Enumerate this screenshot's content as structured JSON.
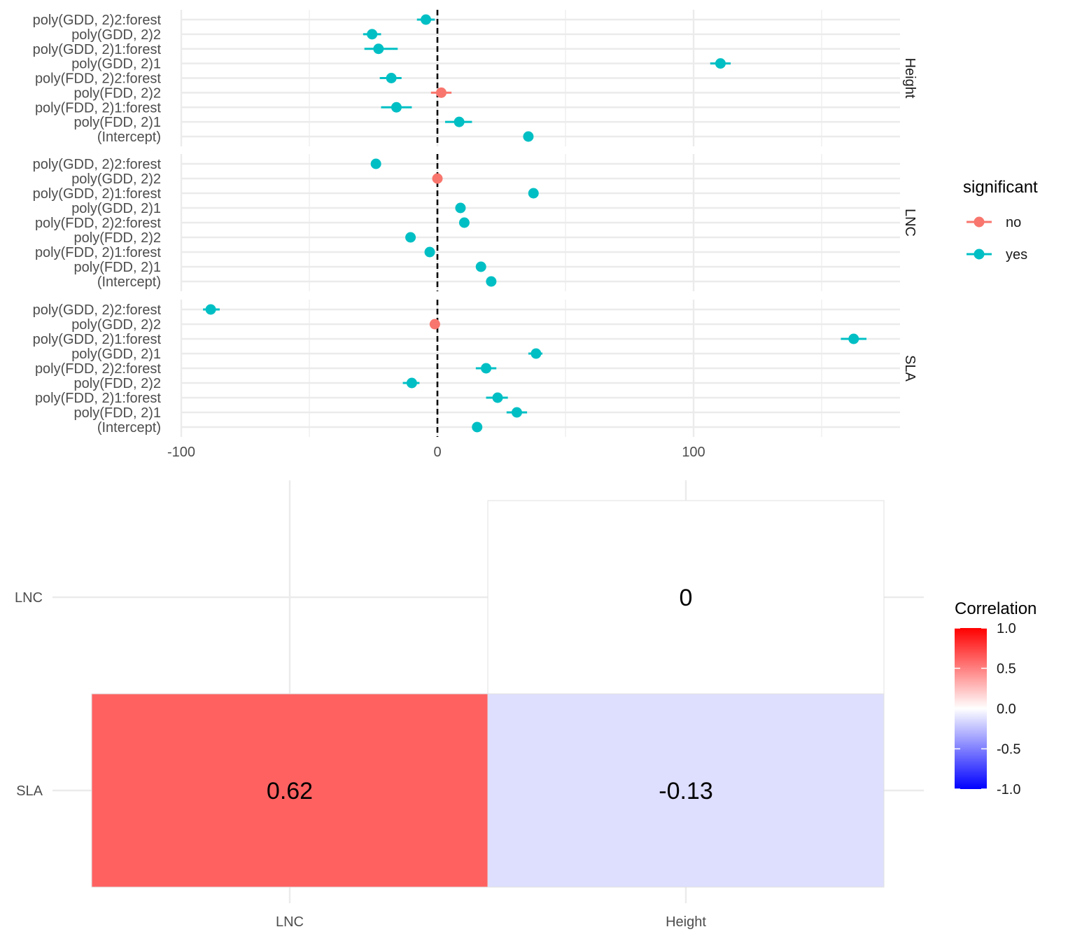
{
  "chart_data": [
    {
      "type": "scatter",
      "subtype": "coefficient dot-and-whisker plot, faceted",
      "x_ticks": [
        "-100",
        "0",
        "100"
      ],
      "xlim": [
        -140,
        180
      ],
      "reference_line_x": 0,
      "legend": {
        "title": "significant",
        "position": "right",
        "entries": [
          {
            "label": "no",
            "color": "#F8766D"
          },
          {
            "label": "yes",
            "color": "#00BFC4"
          }
        ]
      },
      "y_categories": [
        "poly(GDD, 2)2:forest",
        "poly(GDD, 2)2",
        "poly(GDD, 2)1:forest",
        "poly(GDD, 2)1",
        "poly(FDD, 2)2:forest",
        "poly(FDD, 2)2",
        "poly(FDD, 2)1:forest",
        "poly(FDD, 2)1",
        "(Intercept)"
      ],
      "facets": [
        {
          "name": "Height",
          "points": [
            {
              "term": "poly(GDD, 2)2:forest",
              "estimate": -4.5,
              "low": -8,
              "high": -1,
              "significant": "yes"
            },
            {
              "term": "poly(GDD, 2)2",
              "estimate": -25.5,
              "low": -29,
              "high": -22,
              "significant": "yes"
            },
            {
              "term": "poly(GDD, 2)1:forest",
              "estimate": -23,
              "low": -28.5,
              "high": -15.5,
              "significant": "yes"
            },
            {
              "term": "poly(GDD, 2)1",
              "estimate": 110.5,
              "low": 106.5,
              "high": 114.5,
              "significant": "yes"
            },
            {
              "term": "poly(FDD, 2)2:forest",
              "estimate": -18,
              "low": -22.5,
              "high": -14,
              "significant": "yes"
            },
            {
              "term": "poly(FDD, 2)2",
              "estimate": 1.5,
              "low": -2.5,
              "high": 5.5,
              "significant": "no"
            },
            {
              "term": "poly(FDD, 2)1:forest",
              "estimate": -16,
              "low": -22,
              "high": -10,
              "significant": "yes"
            },
            {
              "term": "poly(FDD, 2)1",
              "estimate": 8.5,
              "low": 3,
              "high": 13.5,
              "significant": "yes"
            },
            {
              "term": "(Intercept)",
              "estimate": 35.5,
              "low": 34,
              "high": 37,
              "significant": "yes"
            }
          ]
        },
        {
          "name": "LNC",
          "points": [
            {
              "term": "poly(GDD, 2)2:forest",
              "estimate": -24,
              "low": -25,
              "high": -23,
              "significant": "yes"
            },
            {
              "term": "poly(GDD, 2)2",
              "estimate": 0,
              "low": -1,
              "high": 1,
              "significant": "no"
            },
            {
              "term": "poly(GDD, 2)1:forest",
              "estimate": 37.5,
              "low": 36.5,
              "high": 38.5,
              "significant": "yes"
            },
            {
              "term": "poly(GDD, 2)1",
              "estimate": 9,
              "low": 8,
              "high": 10,
              "significant": "yes"
            },
            {
              "term": "poly(FDD, 2)2:forest",
              "estimate": 10.5,
              "low": 9.5,
              "high": 11.5,
              "significant": "yes"
            },
            {
              "term": "poly(FDD, 2)2",
              "estimate": -10.5,
              "low": -11.5,
              "high": -9.5,
              "significant": "yes"
            },
            {
              "term": "poly(FDD, 2)1:forest",
              "estimate": -3,
              "low": -4,
              "high": -2,
              "significant": "yes"
            },
            {
              "term": "poly(FDD, 2)1",
              "estimate": 17,
              "low": 16,
              "high": 18,
              "significant": "yes"
            },
            {
              "term": "(Intercept)",
              "estimate": 21,
              "low": 20,
              "high": 22,
              "significant": "yes"
            }
          ]
        },
        {
          "name": "SLA",
          "points": [
            {
              "term": "poly(GDD, 2)2:forest",
              "estimate": -88.5,
              "low": -91.5,
              "high": -85,
              "significant": "yes"
            },
            {
              "term": "poly(GDD, 2)2",
              "estimate": -1,
              "low": -3,
              "high": 1,
              "significant": "no"
            },
            {
              "term": "poly(GDD, 2)1:forest",
              "estimate": 162.5,
              "low": 157.5,
              "high": 167.5,
              "significant": "yes"
            },
            {
              "term": "poly(GDD, 2)1",
              "estimate": 38.5,
              "low": 35.5,
              "high": 41,
              "significant": "yes"
            },
            {
              "term": "poly(FDD, 2)2:forest",
              "estimate": 19,
              "low": 15,
              "high": 23,
              "significant": "yes"
            },
            {
              "term": "poly(FDD, 2)2",
              "estimate": -10,
              "low": -13.5,
              "high": -7,
              "significant": "yes"
            },
            {
              "term": "poly(FDD, 2)1:forest",
              "estimate": 23.5,
              "low": 19,
              "high": 27.5,
              "significant": "yes"
            },
            {
              "term": "poly(FDD, 2)1",
              "estimate": 31,
              "low": 27,
              "high": 35,
              "significant": "yes"
            },
            {
              "term": "(Intercept)",
              "estimate": 15.5,
              "low": 14.5,
              "high": 16.5,
              "significant": "yes"
            }
          ]
        }
      ]
    },
    {
      "type": "heatmap",
      "x_categories": [
        "LNC",
        "Height"
      ],
      "y_categories": [
        "LNC",
        "SLA"
      ],
      "cells": [
        {
          "x": "Height",
          "y": "LNC",
          "value": 0,
          "label": "0"
        },
        {
          "x": "LNC",
          "y": "SLA",
          "value": 0.62,
          "label": "0.62"
        },
        {
          "x": "Height",
          "y": "SLA",
          "value": -0.13,
          "label": "-0.13"
        }
      ],
      "legend": {
        "title": "Correlation",
        "position": "right",
        "range": [
          -1,
          1
        ],
        "ticks": [
          "1.0",
          "0.5",
          "0.0",
          "-0.5",
          "-1.0"
        ],
        "colors": {
          "low": "#0000FF",
          "mid": "#FFFFFF",
          "high": "#FF0000"
        }
      }
    }
  ]
}
